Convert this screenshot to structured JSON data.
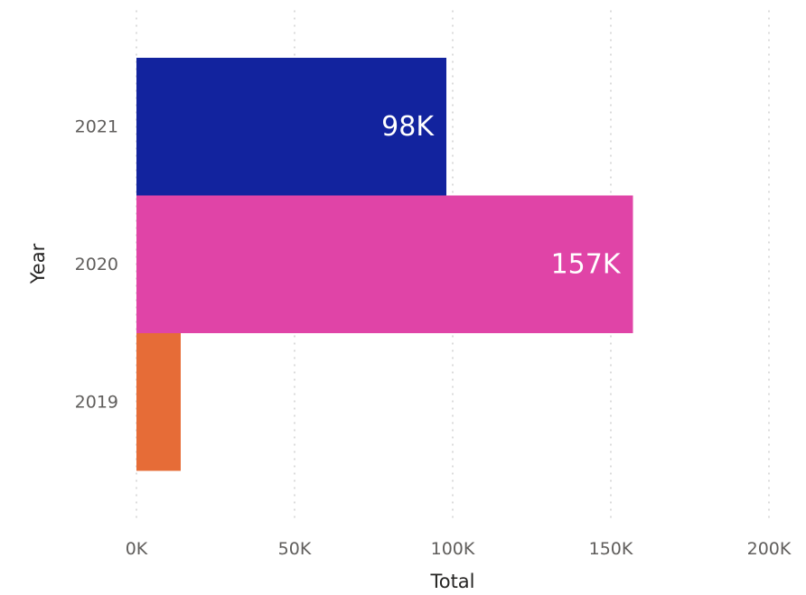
{
  "chart_data": {
    "type": "bar",
    "orientation": "horizontal",
    "categories": [
      "2021",
      "2020",
      "2019"
    ],
    "values": [
      98000,
      157000,
      14000
    ],
    "data_labels": [
      "98K",
      "157K",
      ""
    ],
    "colors": [
      "#12239e",
      "#e044a7",
      "#e66c37"
    ],
    "xlabel": "Total",
    "ylabel": "Year",
    "xlim": [
      0,
      200000
    ],
    "x_ticks": [
      0,
      50000,
      100000,
      150000,
      200000
    ],
    "x_tick_labels": [
      "0K",
      "50K",
      "100K",
      "150K",
      "200K"
    ],
    "grid": "vertical-dotted",
    "legend": "none"
  }
}
